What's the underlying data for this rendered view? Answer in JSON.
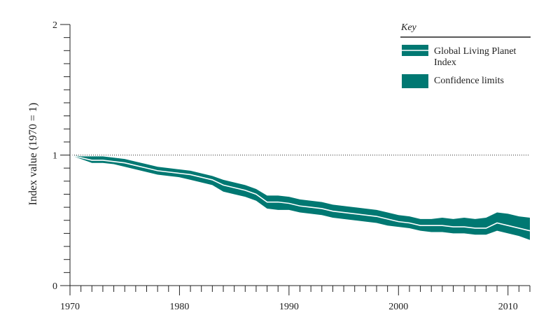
{
  "chart_data": {
    "type": "area",
    "title": "",
    "xlabel": "",
    "ylabel": "Index value (1970 = 1)",
    "xlim": [
      1970,
      2012
    ],
    "ylim": [
      0,
      2
    ],
    "x_ticks": [
      "1970",
      "1980",
      "1990",
      "2000",
      "2010"
    ],
    "y_ticks": [
      "0",
      "1",
      "2"
    ],
    "reference_line": 1,
    "colors": {
      "band": "#007872",
      "line": "#ffffff"
    },
    "legend": {
      "title": "Key",
      "placement": "top-right",
      "entries": [
        "Global Living Planet Index",
        "Confidence limits"
      ]
    },
    "x": [
      1970,
      1971,
      1972,
      1973,
      1974,
      1975,
      1976,
      1977,
      1978,
      1979,
      1980,
      1981,
      1982,
      1983,
      1984,
      1985,
      1986,
      1987,
      1988,
      1989,
      1990,
      1991,
      1992,
      1993,
      1994,
      1995,
      1996,
      1997,
      1998,
      1999,
      2000,
      2001,
      2002,
      2003,
      2004,
      2005,
      2006,
      2007,
      2008,
      2009,
      2010,
      2011,
      2012
    ],
    "series": [
      {
        "name": "Global Living Planet Index",
        "values": [
          1.0,
          0.98,
          0.96,
          0.96,
          0.95,
          0.94,
          0.92,
          0.9,
          0.88,
          0.87,
          0.86,
          0.85,
          0.83,
          0.81,
          0.77,
          0.75,
          0.73,
          0.7,
          0.64,
          0.64,
          0.63,
          0.61,
          0.6,
          0.59,
          0.57,
          0.56,
          0.55,
          0.54,
          0.53,
          0.51,
          0.49,
          0.48,
          0.46,
          0.46,
          0.46,
          0.45,
          0.45,
          0.44,
          0.44,
          0.48,
          0.46,
          0.44,
          0.42
        ]
      },
      {
        "name": "Confidence limits (upper)",
        "values": [
          1.0,
          0.99,
          0.99,
          0.99,
          0.98,
          0.97,
          0.95,
          0.93,
          0.91,
          0.9,
          0.89,
          0.88,
          0.86,
          0.84,
          0.81,
          0.79,
          0.77,
          0.74,
          0.69,
          0.69,
          0.68,
          0.66,
          0.65,
          0.64,
          0.62,
          0.61,
          0.6,
          0.59,
          0.58,
          0.56,
          0.54,
          0.53,
          0.51,
          0.51,
          0.52,
          0.51,
          0.52,
          0.51,
          0.52,
          0.56,
          0.55,
          0.53,
          0.52
        ]
      },
      {
        "name": "Confidence limits (lower)",
        "values": [
          1.0,
          0.97,
          0.94,
          0.94,
          0.93,
          0.91,
          0.89,
          0.87,
          0.85,
          0.84,
          0.83,
          0.81,
          0.79,
          0.77,
          0.72,
          0.7,
          0.68,
          0.65,
          0.59,
          0.58,
          0.58,
          0.56,
          0.55,
          0.54,
          0.52,
          0.51,
          0.5,
          0.49,
          0.48,
          0.46,
          0.45,
          0.44,
          0.42,
          0.41,
          0.41,
          0.4,
          0.4,
          0.39,
          0.39,
          0.42,
          0.4,
          0.38,
          0.35
        ]
      }
    ]
  }
}
